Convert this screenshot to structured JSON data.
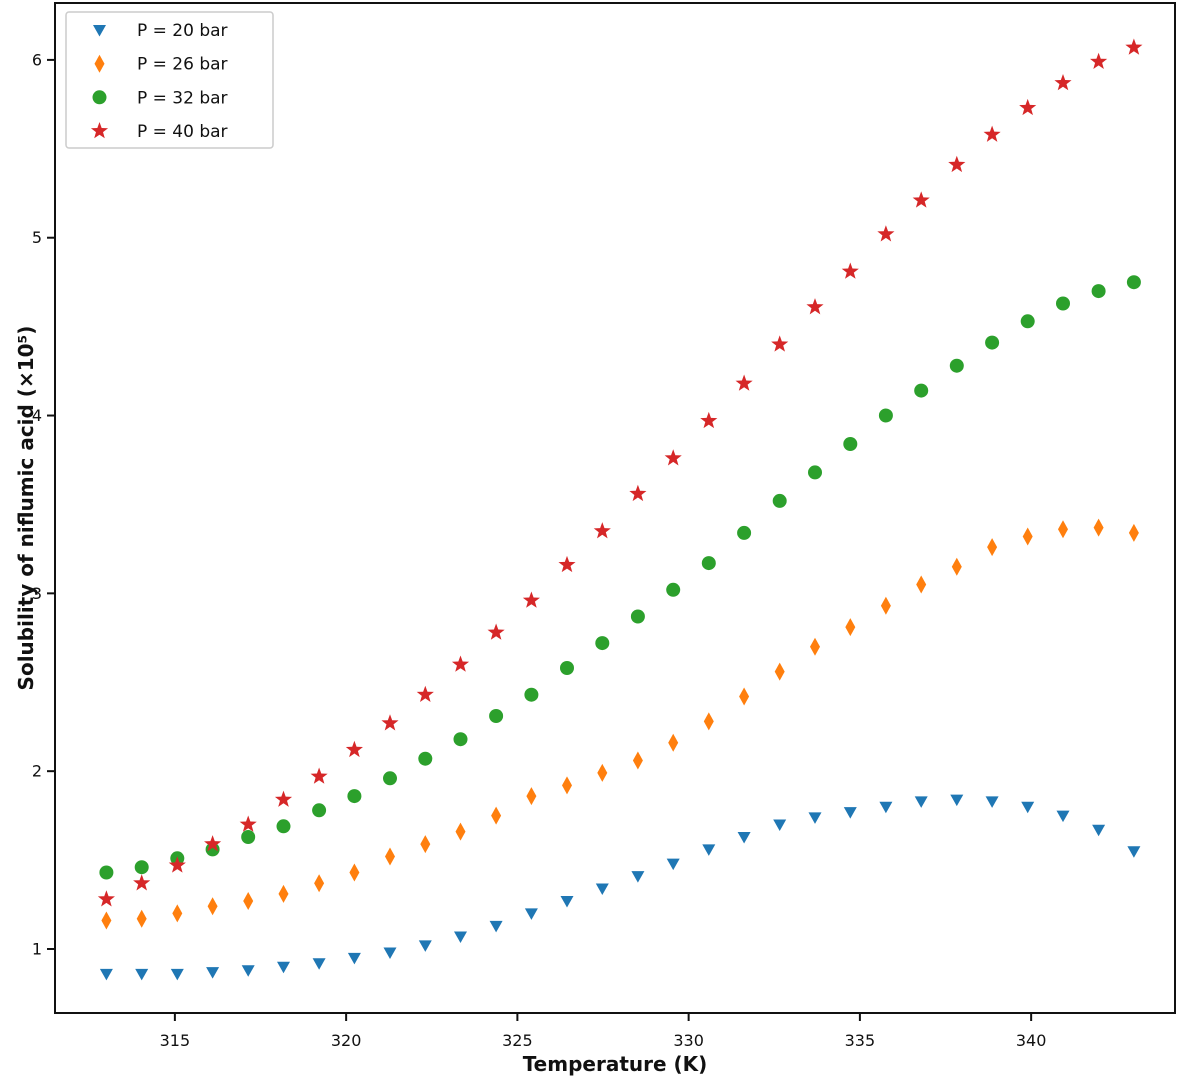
{
  "figure": {
    "background": "#ffffff",
    "spine_color": "#111111"
  },
  "chart_data": {
    "type": "scatter",
    "title": "",
    "xlabel": "Temperature (K)",
    "ylabel": "Solubility of niflumic acid (×10⁵)",
    "xlim": [
      311.5,
      344.2
    ],
    "ylim": [
      0.64,
      6.32
    ],
    "xticks": [
      315,
      320,
      325,
      330,
      335,
      340
    ],
    "yticks": [
      1,
      2,
      3,
      4,
      5,
      6
    ],
    "grid": false,
    "legend": {
      "position": "upper-left",
      "border_color": "#cccccc",
      "background": "#ffffff"
    },
    "x": [
      313.0,
      314.03,
      315.07,
      316.1,
      317.14,
      318.17,
      319.21,
      320.24,
      321.28,
      322.31,
      323.34,
      324.38,
      325.41,
      326.45,
      327.48,
      328.52,
      329.55,
      330.59,
      331.62,
      332.66,
      333.69,
      334.72,
      335.76,
      336.79,
      337.83,
      338.86,
      339.9,
      340.93,
      341.97,
      343.0
    ],
    "series": [
      {
        "name": "P = 20 bar",
        "marker": "triangle-down",
        "color": "#1f77b4",
        "values": [
          0.86,
          0.86,
          0.86,
          0.87,
          0.88,
          0.9,
          0.92,
          0.95,
          0.98,
          1.02,
          1.07,
          1.13,
          1.2,
          1.27,
          1.34,
          1.41,
          1.48,
          1.56,
          1.63,
          1.7,
          1.74,
          1.77,
          1.8,
          1.83,
          1.84,
          1.83,
          1.8,
          1.75,
          1.67,
          1.55
        ]
      },
      {
        "name": "P = 26 bar",
        "marker": "thin-diamond",
        "color": "#ff7f0e",
        "values": [
          1.16,
          1.17,
          1.2,
          1.24,
          1.27,
          1.31,
          1.37,
          1.43,
          1.52,
          1.59,
          1.66,
          1.75,
          1.86,
          1.92,
          1.99,
          2.06,
          2.16,
          2.28,
          2.42,
          2.56,
          2.7,
          2.81,
          2.93,
          3.05,
          3.15,
          3.26,
          3.32,
          3.36,
          3.37,
          3.34
        ]
      },
      {
        "name": "P = 32 bar",
        "marker": "circle",
        "color": "#2ca02c",
        "values": [
          1.43,
          1.46,
          1.51,
          1.56,
          1.63,
          1.69,
          1.78,
          1.86,
          1.96,
          2.07,
          2.18,
          2.31,
          2.43,
          2.58,
          2.72,
          2.87,
          3.02,
          3.17,
          3.34,
          3.52,
          3.68,
          3.84,
          4.0,
          4.14,
          4.28,
          4.41,
          4.53,
          4.63,
          4.7,
          4.75
        ]
      },
      {
        "name": "P = 40 bar",
        "marker": "star",
        "color": "#d62728",
        "values": [
          1.28,
          1.37,
          1.47,
          1.59,
          1.7,
          1.84,
          1.97,
          2.12,
          2.27,
          2.43,
          2.6,
          2.78,
          2.96,
          3.16,
          3.35,
          3.56,
          3.76,
          3.97,
          4.18,
          4.4,
          4.61,
          4.81,
          5.02,
          5.21,
          5.41,
          5.58,
          5.73,
          5.87,
          5.99,
          6.07
        ]
      }
    ]
  }
}
